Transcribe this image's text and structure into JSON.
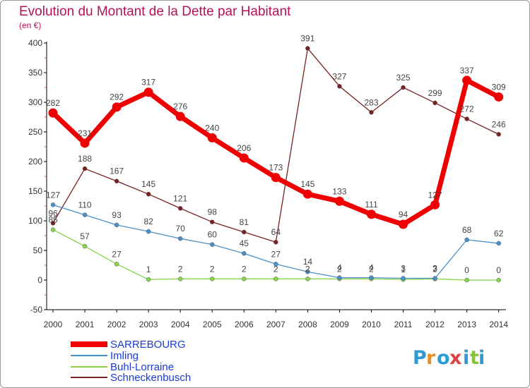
{
  "chart_data": {
    "type": "line",
    "title": "Evolution du Montant de la Dette par Habitant",
    "subtitle": "(en €)",
    "xlabel": "",
    "ylabel": "",
    "ylim": [
      -50,
      400
    ],
    "yticks": [
      -50,
      0,
      50,
      100,
      150,
      200,
      250,
      300,
      350,
      400
    ],
    "x": [
      "2000",
      "2001",
      "2002",
      "2003",
      "2004",
      "2005",
      "2006",
      "2007",
      "2008",
      "2009",
      "2010",
      "2011",
      "2012",
      "2013",
      "2014"
    ],
    "legend_position": "bottom-left",
    "series": [
      {
        "name": "SARREBOURG",
        "color": "#ee0000",
        "values": [
          282,
          231,
          292,
          317,
          276,
          240,
          206,
          173,
          145,
          133,
          111,
          94,
          127,
          337,
          309
        ]
      },
      {
        "name": "Imling",
        "color": "#4a90c8",
        "values": [
          127,
          110,
          93,
          82,
          70,
          60,
          45,
          27,
          14,
          4,
          4,
          3,
          3,
          68,
          62
        ]
      },
      {
        "name": "Buhl-Lorraine",
        "color": "#88d44a",
        "values": [
          85,
          57,
          27,
          1,
          2,
          2,
          2,
          2,
          2,
          2,
          2,
          1,
          2,
          0,
          0
        ]
      },
      {
        "name": "Schneckenbusch",
        "color": "#7a2020",
        "values": [
          96,
          188,
          167,
          145,
          121,
          98,
          81,
          64,
          391,
          327,
          283,
          325,
          299,
          272,
          246
        ]
      }
    ]
  },
  "logo": {
    "letters": [
      "P",
      "r",
      "o",
      "x",
      "i",
      "t",
      "i"
    ],
    "colors": [
      "#2f9bd5",
      "#f08c1e",
      "#2f9bd5",
      "#e04040",
      "#2f9bd5",
      "#88c23a",
      "#2f9bd5"
    ]
  }
}
